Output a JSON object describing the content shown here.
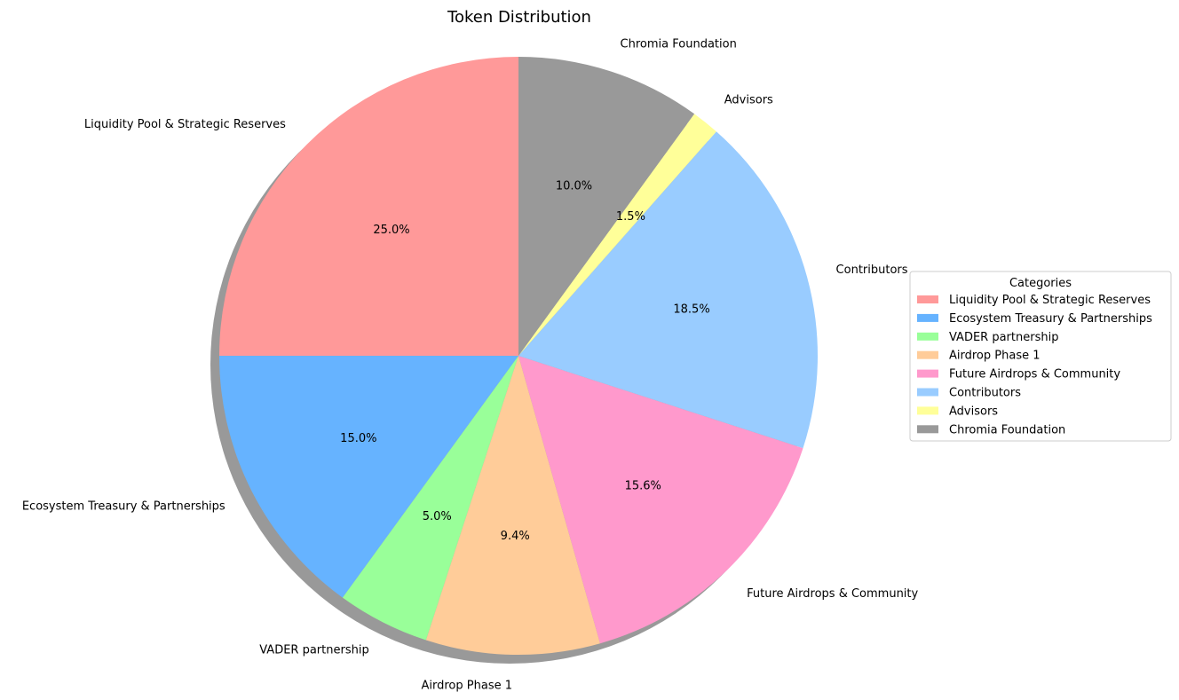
{
  "chart_data": {
    "type": "pie",
    "title": "Token Distribution",
    "categories": [
      "Liquidity Pool & Strategic Reserves",
      "Ecosystem Treasury & Partnerships",
      "VADER partnership",
      "Airdrop Phase 1",
      "Future Airdrops & Community",
      "Contributors",
      "Advisors",
      "Chromia Foundation"
    ],
    "values": [
      25.0,
      15.0,
      5.0,
      9.4,
      15.6,
      18.5,
      1.5,
      10.0
    ],
    "percent_labels": [
      "25.0%",
      "15.0%",
      "5.0%",
      "9.4%",
      "15.6%",
      "18.5%",
      "1.5%",
      "10.0%"
    ],
    "colors": [
      "#ff9999",
      "#66b3ff",
      "#99ff99",
      "#ffcc99",
      "#ff99cc",
      "#99ccff",
      "#ffff99",
      "#999999"
    ],
    "start_angle_deg": 90,
    "direction": "counterclockwise",
    "shadow": true,
    "legend": {
      "title": "Categories",
      "placement": "center-right"
    }
  }
}
